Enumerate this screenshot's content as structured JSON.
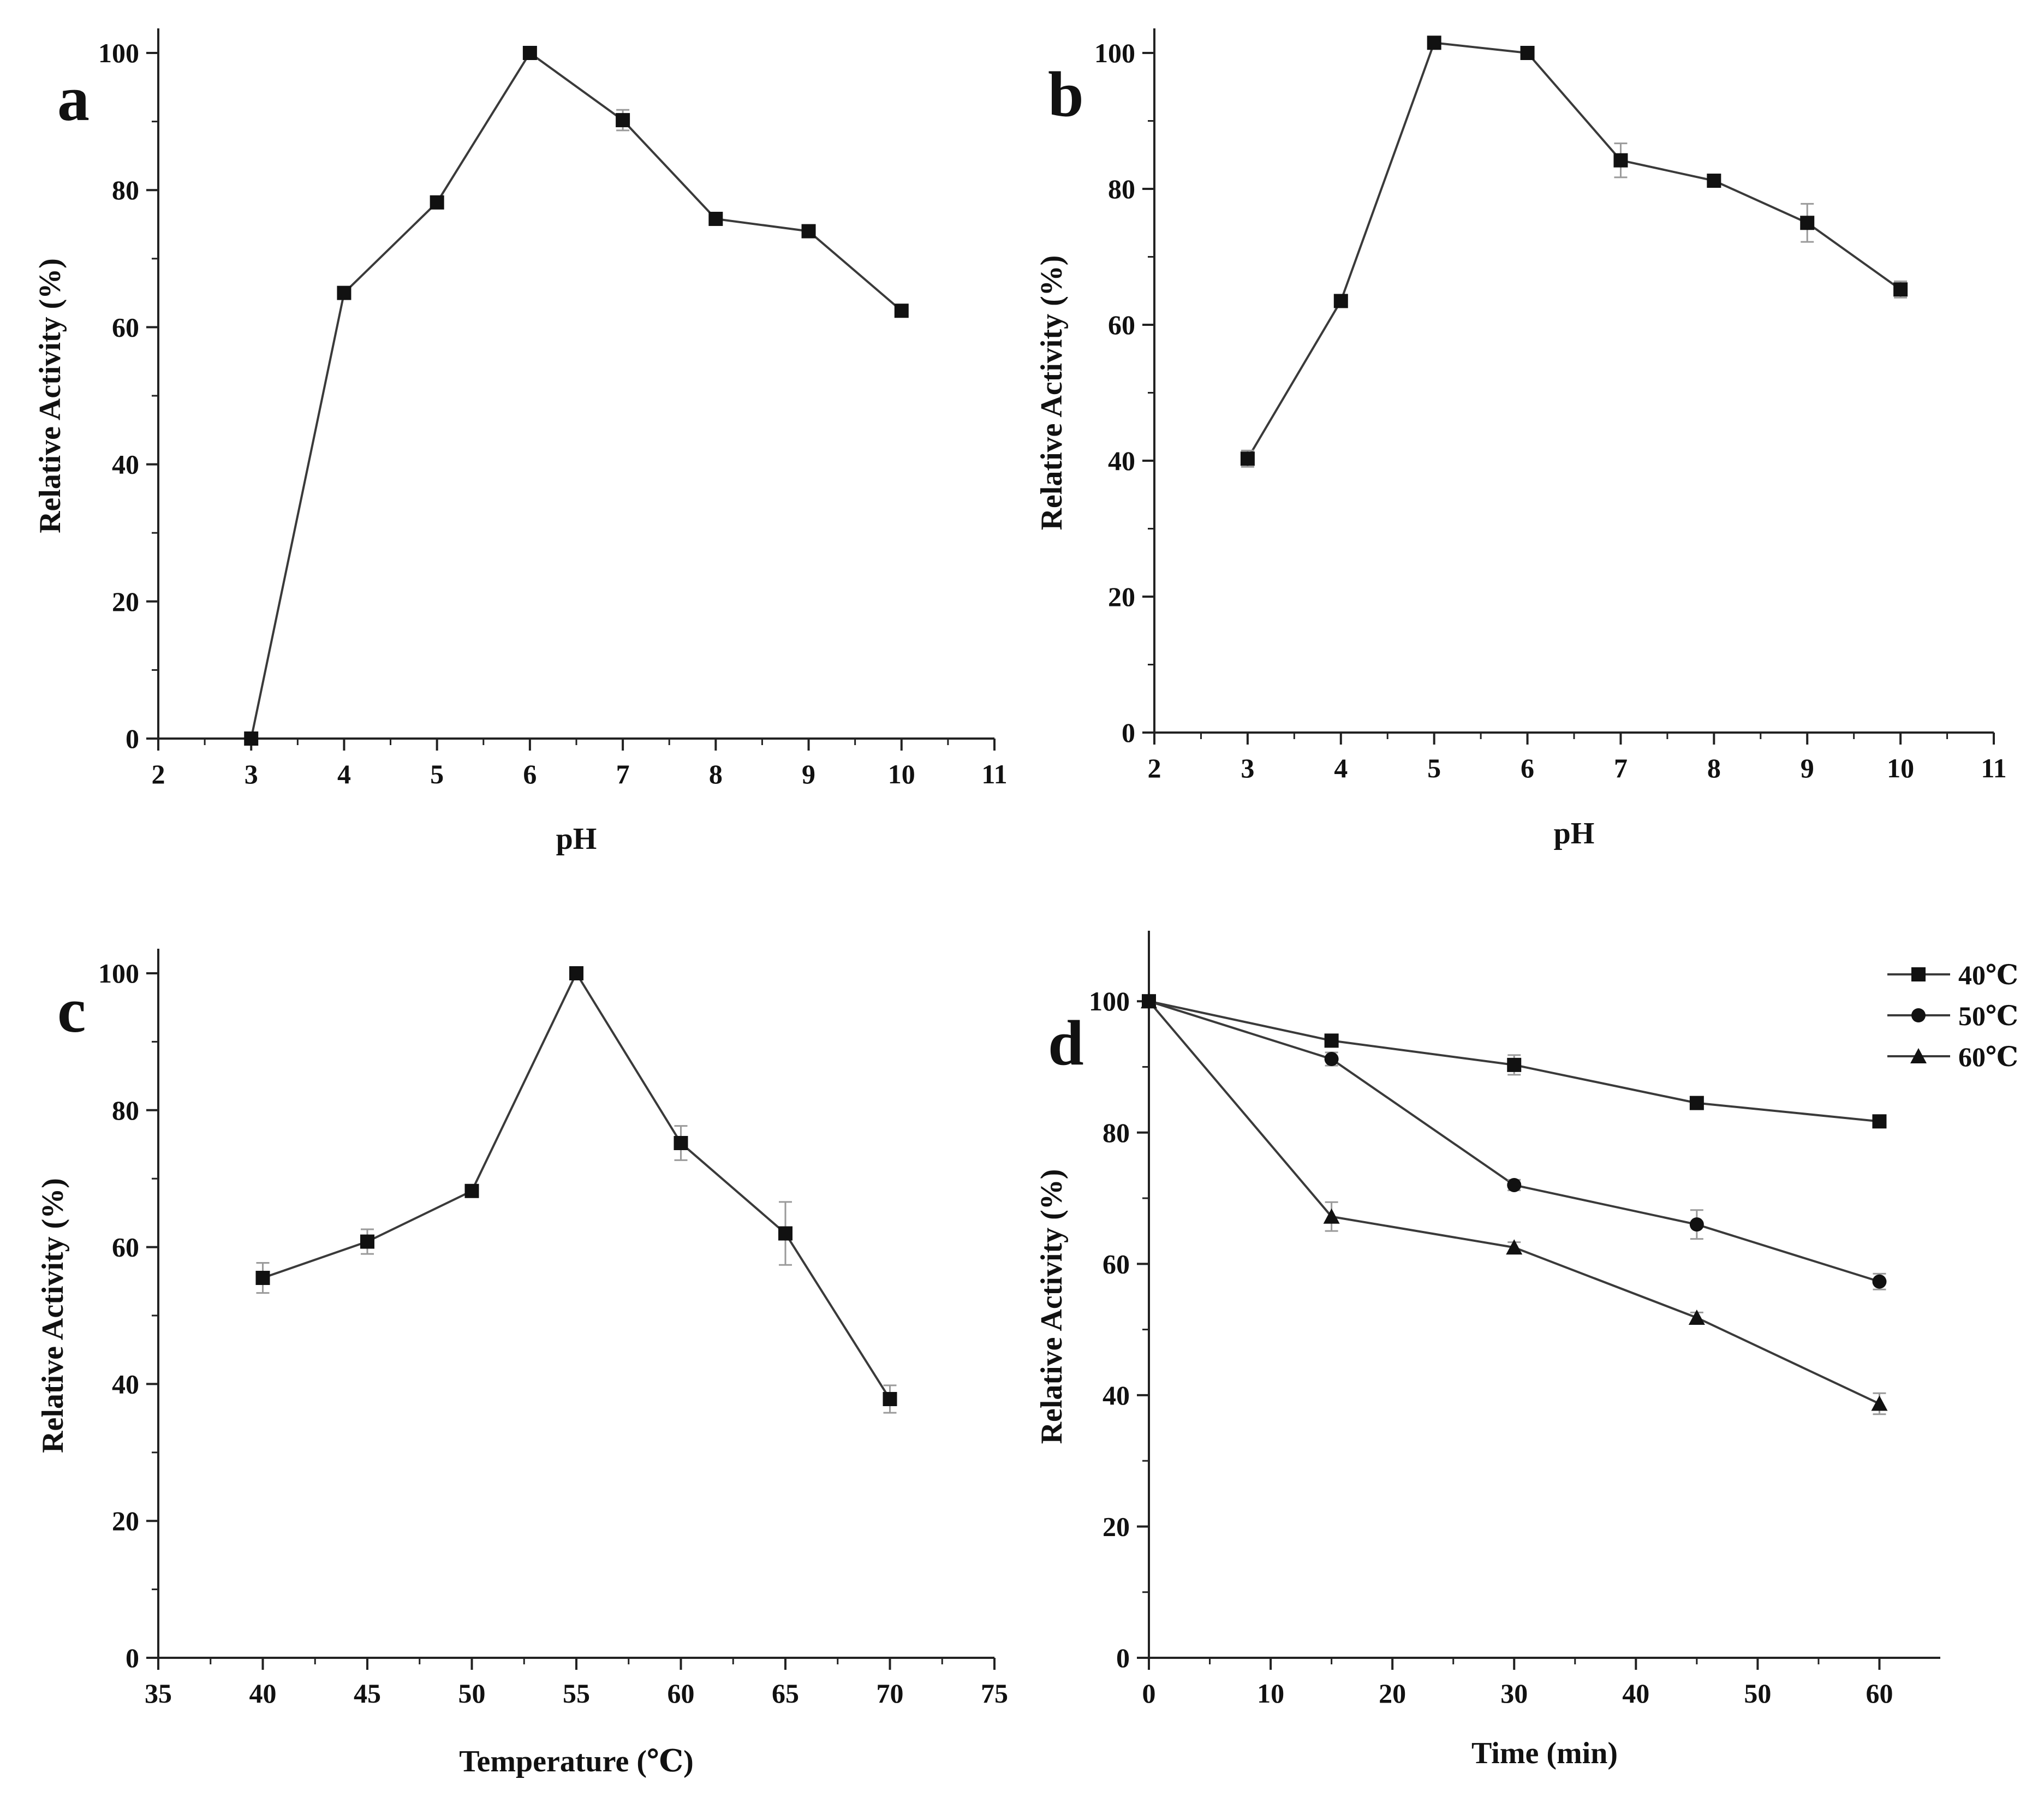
{
  "chart_data": [
    {
      "type": "line",
      "panel": "a",
      "xlabel": "pH",
      "ylabel": "Relative Activity (%)",
      "xlim": [
        2,
        11
      ],
      "ylim": [
        0,
        100
      ],
      "xticks": [
        2,
        3,
        4,
        5,
        6,
        7,
        8,
        9,
        10,
        11
      ],
      "yticks": [
        0,
        20,
        40,
        60,
        80,
        100
      ],
      "series": [
        {
          "name": "",
          "marker": "square",
          "x": [
            3,
            4,
            5,
            6,
            7,
            8,
            9,
            10
          ],
          "y": [
            0,
            65,
            78.2,
            100,
            90.2,
            75.8,
            74,
            62.4
          ],
          "err": [
            0,
            0.6,
            0.8,
            0.5,
            1.5,
            0.6,
            0.5,
            0.6
          ]
        }
      ]
    },
    {
      "type": "line",
      "panel": "b",
      "xlabel": "pH",
      "ylabel": "Relative Activity (%)",
      "xlim": [
        2,
        11
      ],
      "ylim": [
        0,
        100
      ],
      "xticks": [
        2,
        3,
        4,
        5,
        6,
        7,
        8,
        9,
        10,
        11
      ],
      "yticks": [
        0,
        20,
        40,
        60,
        80,
        100
      ],
      "series": [
        {
          "name": "",
          "marker": "square",
          "x": [
            3,
            4,
            5,
            6,
            7,
            8,
            9,
            10
          ],
          "y": [
            40.3,
            63.5,
            101.5,
            100,
            84.2,
            81.2,
            75,
            65.2
          ],
          "err": [
            1.2,
            0.8,
            0.9,
            0.6,
            2.5,
            0.6,
            2.8,
            1.2
          ]
        }
      ]
    },
    {
      "type": "line",
      "panel": "c",
      "xlabel": "Temperature (℃)",
      "ylabel": "Relative Activity (%)",
      "xlim": [
        35,
        75
      ],
      "ylim": [
        0,
        100
      ],
      "xticks": [
        35,
        40,
        45,
        50,
        55,
        60,
        65,
        70,
        75
      ],
      "yticks": [
        0,
        20,
        40,
        60,
        80,
        100
      ],
      "series": [
        {
          "name": "",
          "marker": "square",
          "x": [
            40,
            45,
            50,
            55,
            60,
            65,
            70
          ],
          "y": [
            55.5,
            60.8,
            68.2,
            100,
            75.2,
            62,
            37.8
          ],
          "err": [
            2.2,
            1.8,
            0.8,
            0.6,
            2.5,
            4.6,
            2
          ]
        }
      ]
    },
    {
      "type": "line",
      "panel": "d",
      "xlabel": "Time (min)",
      "ylabel": "Relative Activity (%)",
      "xlim": [
        0,
        65
      ],
      "ylim": [
        0,
        107
      ],
      "xticks": [
        0,
        10,
        20,
        30,
        40,
        50,
        60
      ],
      "yticks": [
        0,
        20,
        40,
        60,
        80,
        100
      ],
      "legend_position": "top-right",
      "series": [
        {
          "name": "40℃",
          "marker": "square",
          "x": [
            0,
            15,
            30,
            45,
            60
          ],
          "y": [
            100,
            94,
            90.3,
            84.5,
            81.7
          ],
          "err": [
            0,
            0.8,
            1.5,
            0.8,
            0.8
          ]
        },
        {
          "name": "50℃",
          "marker": "circle",
          "x": [
            0,
            15,
            30,
            45,
            60
          ],
          "y": [
            100,
            91.2,
            72,
            66,
            57.3
          ],
          "err": [
            0,
            1,
            0.8,
            2.2,
            1.2
          ]
        },
        {
          "name": "60℃",
          "marker": "triangle",
          "x": [
            0,
            15,
            30,
            45,
            60
          ],
          "y": [
            100,
            67.2,
            62.5,
            51.8,
            38.7
          ],
          "err": [
            0,
            2.2,
            0.8,
            0.8,
            1.6
          ]
        }
      ]
    }
  ]
}
